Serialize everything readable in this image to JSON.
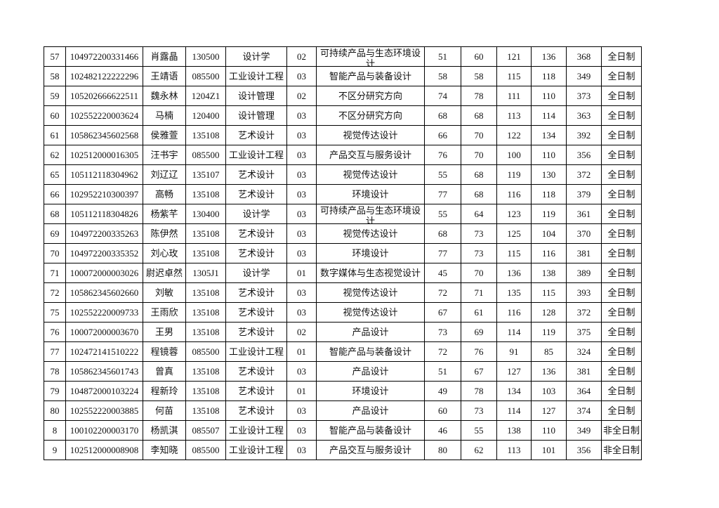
{
  "table": {
    "rows": [
      [
        "57",
        "104972200331466",
        "肖露晶",
        "130500",
        "设计学",
        "02",
        "可持续产品与生态环境设计",
        "51",
        "60",
        "121",
        "136",
        "368",
        "全日制"
      ],
      [
        "58",
        "102482122222296",
        "王靖语",
        "085500",
        "工业设计工程",
        "03",
        "智能产品与装备设计",
        "58",
        "58",
        "115",
        "118",
        "349",
        "全日制"
      ],
      [
        "59",
        "105202666622511",
        "魏永林",
        "1204Z1",
        "设计管理",
        "02",
        "不区分研究方向",
        "74",
        "78",
        "111",
        "110",
        "373",
        "全日制"
      ],
      [
        "60",
        "102552220003624",
        "马楠",
        "120400",
        "设计管理",
        "03",
        "不区分研究方向",
        "68",
        "68",
        "113",
        "114",
        "363",
        "全日制"
      ],
      [
        "61",
        "105862345602568",
        "侯雅萱",
        "135108",
        "艺术设计",
        "03",
        "视觉传达设计",
        "66",
        "70",
        "122",
        "134",
        "392",
        "全日制"
      ],
      [
        "62",
        "102512000016305",
        "汪书宇",
        "085500",
        "工业设计工程",
        "03",
        "产品交互与服务设计",
        "76",
        "70",
        "100",
        "110",
        "356",
        "全日制"
      ],
      [
        "65",
        "105112118304962",
        "刘辽辽",
        "135107",
        "艺术设计",
        "03",
        "视觉传达设计",
        "55",
        "68",
        "119",
        "130",
        "372",
        "全日制"
      ],
      [
        "66",
        "102952210300397",
        "高畅",
        "135108",
        "艺术设计",
        "03",
        "环境设计",
        "77",
        "68",
        "116",
        "118",
        "379",
        "全日制"
      ],
      [
        "68",
        "105112118304826",
        "杨紫芊",
        "130400",
        "设计学",
        "03",
        "可持续产品与生态环境设计",
        "55",
        "64",
        "123",
        "119",
        "361",
        "全日制"
      ],
      [
        "69",
        "104972200335263",
        "陈伊然",
        "135108",
        "艺术设计",
        "03",
        "视觉传达设计",
        "68",
        "73",
        "125",
        "104",
        "370",
        "全日制"
      ],
      [
        "70",
        "104972200335352",
        "刘心玫",
        "135108",
        "艺术设计",
        "03",
        "环境设计",
        "77",
        "73",
        "115",
        "116",
        "381",
        "全日制"
      ],
      [
        "71",
        "100072000003026",
        "尉迟卓然",
        "1305J1",
        "设计学",
        "01",
        "数字媒体与生态视觉设计",
        "45",
        "70",
        "136",
        "138",
        "389",
        "全日制"
      ],
      [
        "72",
        "105862345602660",
        "刘敏",
        "135108",
        "艺术设计",
        "03",
        "视觉传达设计",
        "72",
        "71",
        "135",
        "115",
        "393",
        "全日制"
      ],
      [
        "75",
        "102552220009733",
        "王雨欣",
        "135108",
        "艺术设计",
        "03",
        "视觉传达设计",
        "67",
        "61",
        "116",
        "128",
        "372",
        "全日制"
      ],
      [
        "76",
        "100072000003670",
        "王男",
        "135108",
        "艺术设计",
        "02",
        "产品设计",
        "73",
        "69",
        "114",
        "119",
        "375",
        "全日制"
      ],
      [
        "77",
        "102472141510222",
        "程镜蓉",
        "085500",
        "工业设计工程",
        "01",
        "智能产品与装备设计",
        "72",
        "76",
        "91",
        "85",
        "324",
        "全日制"
      ],
      [
        "78",
        "105862345601743",
        "曾真",
        "135108",
        "艺术设计",
        "03",
        "产品设计",
        "51",
        "67",
        "127",
        "136",
        "381",
        "全日制"
      ],
      [
        "79",
        "104872000103224",
        "程新玲",
        "135108",
        "艺术设计",
        "01",
        "环境设计",
        "49",
        "78",
        "134",
        "103",
        "364",
        "全日制"
      ],
      [
        "80",
        "102552220003885",
        "何苗",
        "135108",
        "艺术设计",
        "03",
        "产品设计",
        "60",
        "73",
        "114",
        "127",
        "374",
        "全日制"
      ],
      [
        "8",
        "100102200003170",
        "杨凯淇",
        "085507",
        "工业设计工程",
        "03",
        "智能产品与装备设计",
        "46",
        "55",
        "138",
        "110",
        "349",
        "非全日制"
      ],
      [
        "9",
        "102512000008908",
        "李知晓",
        "085500",
        "工业设计工程",
        "03",
        "产品交互与服务设计",
        "80",
        "62",
        "113",
        "101",
        "356",
        "非全日制"
      ]
    ]
  }
}
